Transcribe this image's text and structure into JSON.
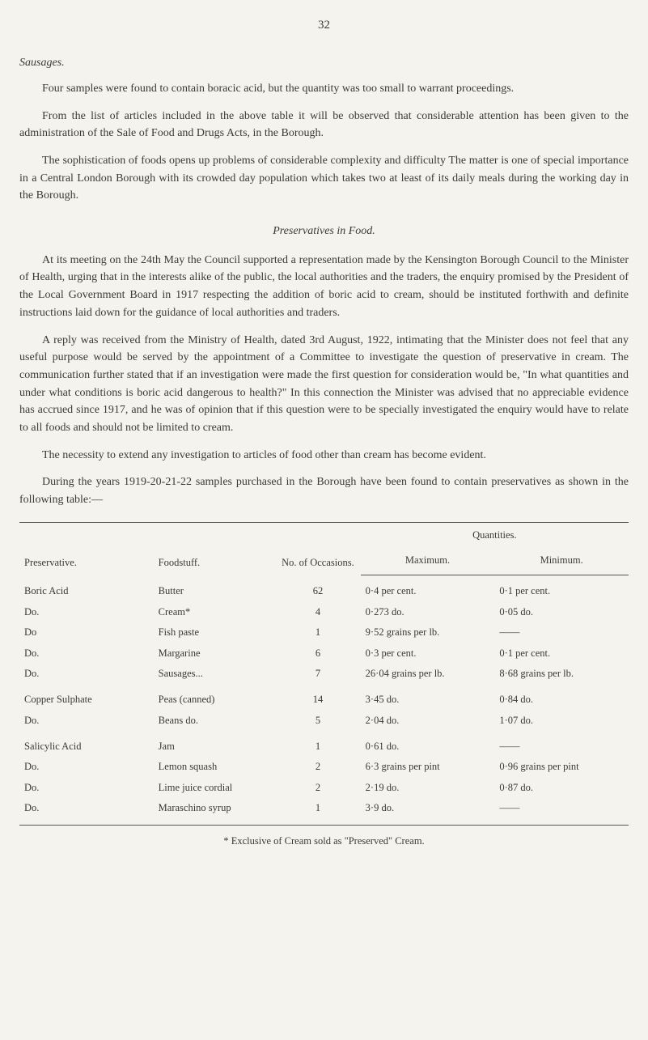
{
  "page_number": "32",
  "sections": {
    "sausages": {
      "title": "Sausages.",
      "p1": "Four samples were found to contain boracic acid, but the quantity was too small to warrant proceedings.",
      "p2": "From the list of articles included in the above table it will be observed that considerable attention has been given to the administration of the Sale of Food and Drugs Acts, in the Borough.",
      "p3": "The sophistication of foods opens up problems of considerable complexity and difficulty The matter is one of special importance in a Central London Borough with its crowded day population which takes two at least of its daily meals during the working day in the Borough."
    },
    "preservatives": {
      "title": "Preservatives in Food.",
      "p1": "At its meeting on the 24th May the Council supported a representation made by the Kensington Borough Council to the Minister of Health, urging that in the interests alike of the public, the local authorities and the traders, the enquiry promised by the President of the Local Government Board in 1917 respecting the addition of boric acid to cream, should be instituted forthwith and definite instructions laid down for the guidance of local authorities and traders.",
      "p2": "A reply was received from the Ministry of Health, dated 3rd August, 1922, intimating that the Minister does not feel that any useful purpose would be served by the appointment of a Committee to investigate the question of preservative in cream. The communication further stated that if an investigation were made the first question for consideration would be, \"In what quantities and under what conditions is boric acid dangerous to health?\" In this connection the Minister was advised that no appreciable evidence has accrued since 1917, and he was of opinion that if this question were to be specially investigated the enquiry would have to relate to all foods and should not be limited to cream.",
      "p3": "The necessity to extend any investigation to articles of food other than cream has become evident.",
      "p4": "During the years 1919-20-21-22 samples purchased in the Borough have been found to contain preservatives as shown in the following table:—"
    }
  },
  "table": {
    "headers": {
      "preservative": "Preservative.",
      "foodstuff": "Foodstuff.",
      "occasions": "No. of Occasions.",
      "quantities": "Quantities.",
      "maximum": "Maximum.",
      "minimum": "Minimum."
    },
    "rows": [
      {
        "preservative": "Boric Acid",
        "foodstuff": "Butter",
        "occasions": "62",
        "max": "0·4 per cent.",
        "min": "0·1 per cent.",
        "group_first": true
      },
      {
        "preservative": "Do.",
        "foodstuff": "Cream*",
        "occasions": "4",
        "max": "0·273 do.",
        "min": "0·05 do."
      },
      {
        "preservative": "Do",
        "foodstuff": "Fish paste",
        "occasions": "1",
        "max": "9·52 grains per lb.",
        "min": "——"
      },
      {
        "preservative": "Do.",
        "foodstuff": "Margarine",
        "occasions": "6",
        "max": "0·3 per cent.",
        "min": "0·1 per cent."
      },
      {
        "preservative": "Do.",
        "foodstuff": "Sausages...",
        "occasions": "7",
        "max": "26·04 grains per lb.",
        "min": "8·68 grains per lb."
      },
      {
        "preservative": "Copper Sulphate",
        "foodstuff": "Peas (canned)",
        "occasions": "14",
        "max": "3·45    do.",
        "min": "0·84    do.",
        "group_first": true
      },
      {
        "preservative": "Do.",
        "foodstuff": "Beans  do.",
        "occasions": "5",
        "max": "2·04    do.",
        "min": "1·07    do."
      },
      {
        "preservative": "Salicylic Acid",
        "foodstuff": "Jam",
        "occasions": "1",
        "max": "0·61    do.",
        "min": "——",
        "group_first": true
      },
      {
        "preservative": "Do.",
        "foodstuff": "Lemon squash",
        "occasions": "2",
        "max": "6·3 grains per pint",
        "min": "0·96 grains per pint"
      },
      {
        "preservative": "Do.",
        "foodstuff": "Lime juice cordial",
        "occasions": "2",
        "max": "2·19    do.",
        "min": "0·87    do."
      },
      {
        "preservative": "Do.",
        "foodstuff": "Maraschino syrup",
        "occasions": "1",
        "max": "3·9    do.",
        "min": "——"
      }
    ],
    "footnote": "* Exclusive of Cream sold as \"Preserved\" Cream."
  }
}
